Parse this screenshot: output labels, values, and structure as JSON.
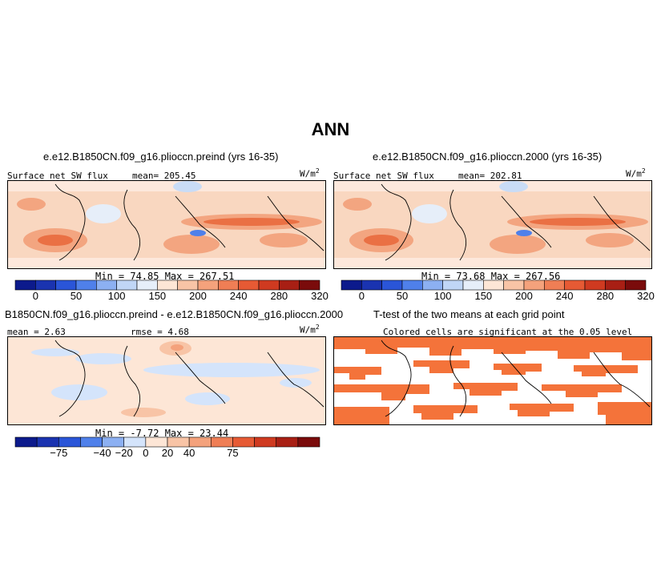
{
  "title": "ANN",
  "panels": [
    {
      "title": "e.e12.B1850CN.f09_g16.plioccn.preind (yrs 16-35)",
      "field": "Surface net SW flux",
      "stat": "mean= 205.45",
      "units": "W/m",
      "units_sup": "2",
      "minmax": "Min =  74.85  Max = 267.51",
      "colorbar_labels": [
        "0",
        "50",
        "100",
        "150",
        "200",
        "240",
        "280",
        "320"
      ]
    },
    {
      "title": "e.e12.B1850CN.f09_g16.plioccn.2000 (yrs 16-35)",
      "field": "Surface net SW flux",
      "stat": "mean= 202.81",
      "units": "W/m",
      "units_sup": "2",
      "minmax": "Min =  73.68  Max = 267.56",
      "colorbar_labels": [
        "0",
        "50",
        "100",
        "150",
        "200",
        "240",
        "280",
        "320"
      ]
    },
    {
      "title": "B1850CN.f09_g16.plioccn.preind - e.e12.B1850CN.f09_g16.plioccn.2000",
      "stat_mean": "mean =  2.63",
      "stat_rmse": "rmse =  4.68",
      "units": "W/m",
      "units_sup": "2",
      "minmax": "Min =  -7.72  Max =  23.44",
      "colorbar_labels": [
        "−75",
        "−40",
        "−20",
        "0",
        "20",
        "40",
        "75"
      ]
    },
    {
      "title": "T-test of the two means at each grid point",
      "subtitle": "Colored cells are significant at the 0.05 level"
    }
  ],
  "colors": {
    "abs_scale": [
      "#0c1a8c",
      "#1a33b0",
      "#2a55d8",
      "#4f80ea",
      "#8cb0f2",
      "#c0d6f6",
      "#e6eef9",
      "#fde6d6",
      "#f8c4a6",
      "#f4a27c",
      "#ef7e55",
      "#e65a34",
      "#cf3a20",
      "#a81f14",
      "#7a0b0b"
    ],
    "diff_scale": [
      "#0c1a8c",
      "#1a33b0",
      "#2a55d8",
      "#4f80ea",
      "#8cb0f2",
      "#d4e4fb",
      "#fde6d6",
      "#f8c4a6",
      "#f4a27c",
      "#ef7e55",
      "#e65a34",
      "#cf3a20",
      "#a81f14",
      "#7a0b0b"
    ],
    "significance": "#f4733a",
    "land": "#f8d0b6",
    "land_outline": "#000000"
  }
}
